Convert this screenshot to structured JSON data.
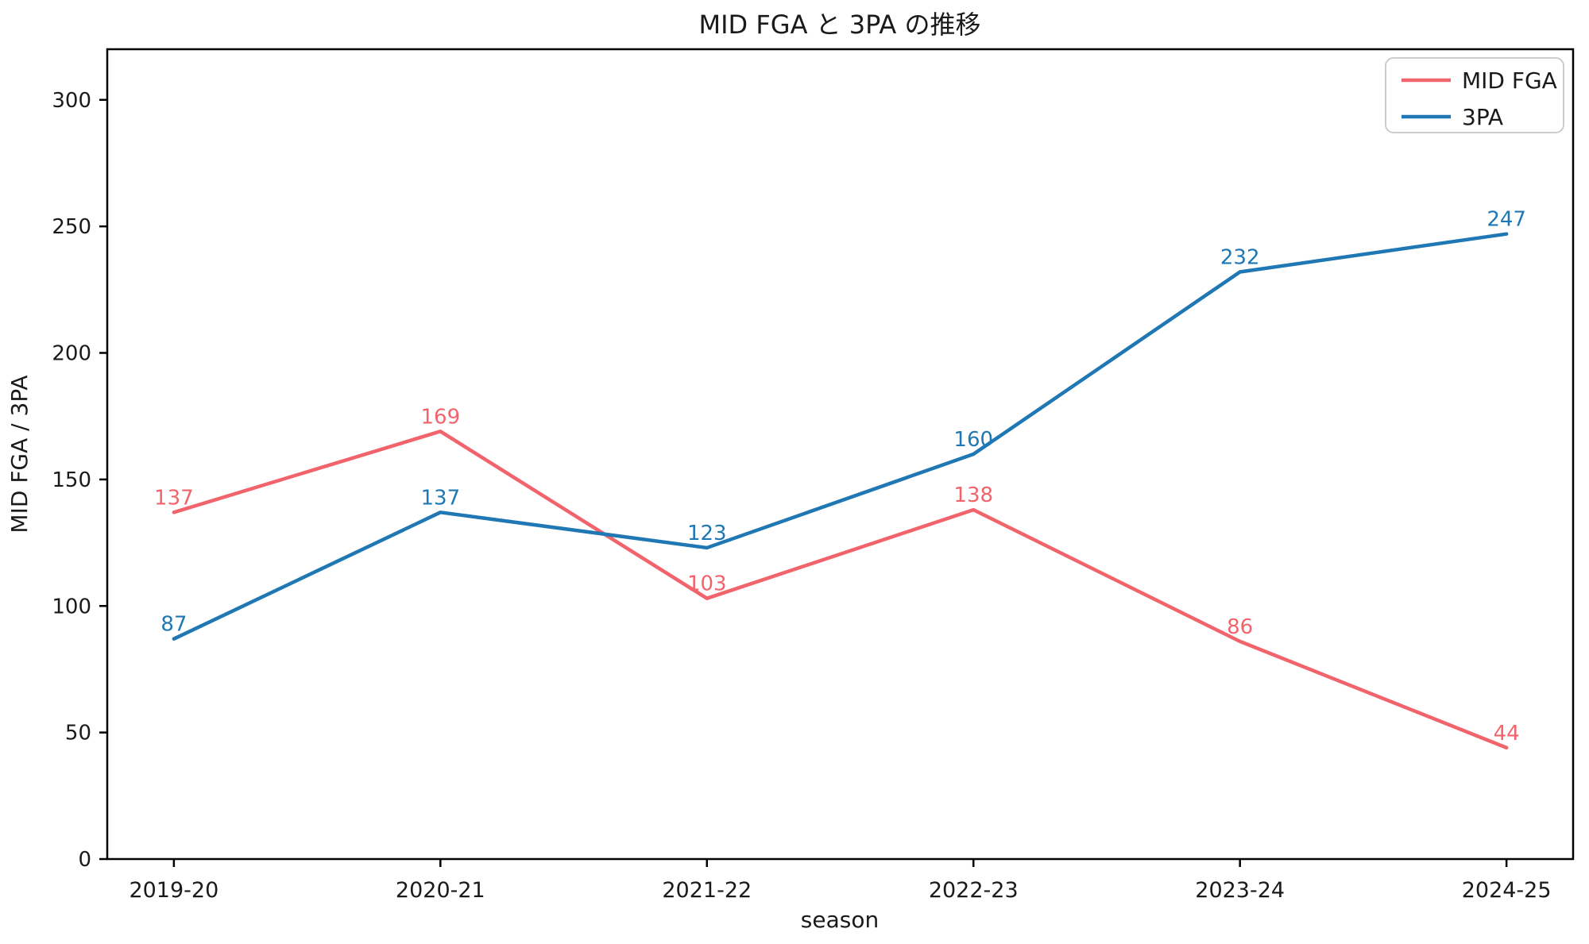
{
  "figure": {
    "background": "#ffffff",
    "axis_color": "#000000",
    "text_color": "#1a1a1a",
    "legend_border_color": "#cccccc",
    "legend_background": "#ffffff"
  },
  "chart_data": {
    "type": "line",
    "title": "MID FGA と 3PA の推移",
    "xlabel": "season",
    "ylabel": "MID FGA / 3PA",
    "categories": [
      "2019-20",
      "2020-21",
      "2021-22",
      "2022-23",
      "2023-24",
      "2024-25"
    ],
    "series": [
      {
        "name": "MID FGA",
        "color": "#f2646c",
        "values": [
          137,
          169,
          103,
          138,
          86,
          44
        ]
      },
      {
        "name": "3PA",
        "color": "#1f77b4",
        "values": [
          87,
          137,
          123,
          160,
          232,
          247
        ]
      }
    ],
    "data_labels": true,
    "yticks": [
      0,
      50,
      100,
      150,
      200,
      250,
      300
    ],
    "ylim": [
      0,
      320
    ],
    "grid": false,
    "legend_position": "upper right",
    "legend_entries": [
      "MID FGA",
      "3PA"
    ]
  }
}
